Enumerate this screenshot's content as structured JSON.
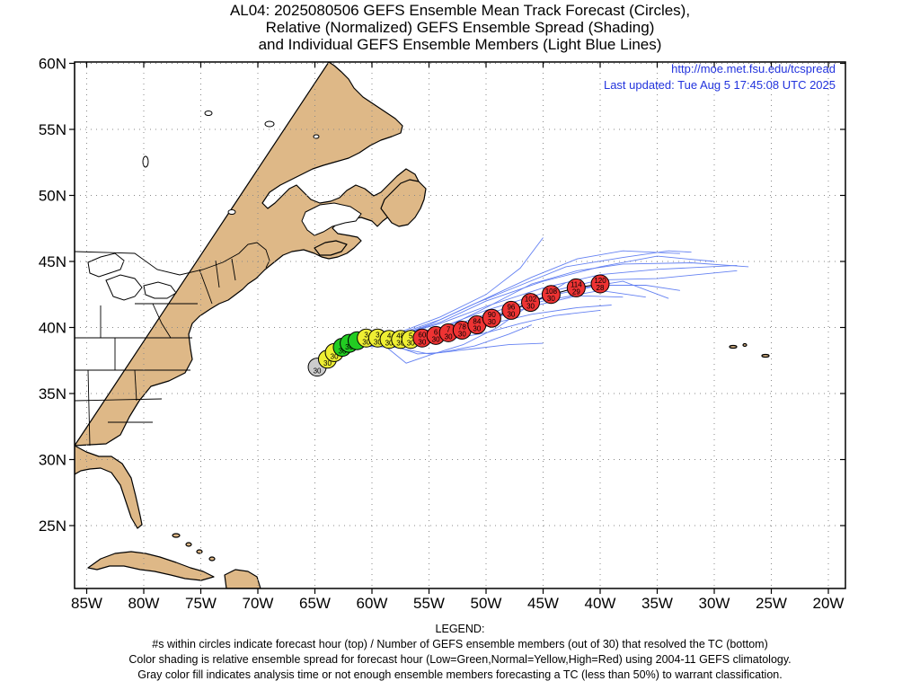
{
  "title": {
    "line1": "AL04: 2025080506 GEFS Ensemble Mean Track Forecast (Circles),",
    "line2": "Relative (Normalized) GEFS Ensemble Spread (Shading)",
    "line3": "and Individual GEFS Ensemble Members (Light Blue Lines)"
  },
  "info": {
    "url": "http://moe.met.fsu.edu/tcspread",
    "updated": "Last updated: Tue Aug 5 17:45:08 UTC 2025"
  },
  "axes": {
    "lon_labels": [
      "85W",
      "80W",
      "75W",
      "70W",
      "65W",
      "60W",
      "55W",
      "50W",
      "45W",
      "40W",
      "35W",
      "30W",
      "25W",
      "20W"
    ],
    "lat_labels": [
      "60N",
      "55N",
      "50N",
      "45N",
      "40N",
      "35N",
      "30N",
      "25N"
    ]
  },
  "legend": {
    "heading": "LEGEND:",
    "line1": "#s within circles indicate forecast hour (top) / Number of GEFS ensemble members (out of 30) that resolved the TC (bottom)",
    "line2": "Color shading is relative ensemble spread for forecast hour (Low=Green,Normal=Yellow,High=Red) using 2004-11 GEFS climatology.",
    "line3": "Gray color fill indicates analysis time or not enough ensemble members forecasting a TC (less than 50%) to warrant classification."
  },
  "colors": {
    "land": "#deb887",
    "member_lines": "#4a6cf0",
    "gray": "#cccccc",
    "green": "#22cc22",
    "yellow": "#eeee33",
    "red": "#ee3333",
    "info_text": "#2233dd"
  },
  "chart_data": {
    "type": "scatter",
    "x_unit": "degrees longitude (negative = W)",
    "y_unit": "degrees latitude",
    "xlim": [
      -86,
      -18
    ],
    "ylim": [
      20.5,
      60
    ],
    "grid": true,
    "track": [
      {
        "lon": -64.8,
        "lat": 37.0,
        "hour": "",
        "members": "30",
        "shade": "gray"
      },
      {
        "lon": -63.9,
        "lat": 37.6,
        "hour": "",
        "members": "30",
        "shade": "yellow"
      },
      {
        "lon": -63.3,
        "lat": 38.1,
        "hour": "",
        "members": "30",
        "shade": "yellow"
      },
      {
        "lon": -62.6,
        "lat": 38.5,
        "hour": "",
        "members": "30",
        "shade": "green"
      },
      {
        "lon": -62.0,
        "lat": 38.8,
        "hour": "",
        "members": "30",
        "shade": "green"
      },
      {
        "lon": -61.3,
        "lat": 39.0,
        "hour": "",
        "members": "",
        "shade": "green"
      },
      {
        "lon": -60.5,
        "lat": 39.2,
        "hour": "3",
        "members": "30",
        "shade": "yellow"
      },
      {
        "lon": -59.5,
        "lat": 39.2,
        "hour": "3",
        "members": "30",
        "shade": "yellow"
      },
      {
        "lon": -58.5,
        "lat": 39.1,
        "hour": "4",
        "members": "30",
        "shade": "yellow"
      },
      {
        "lon": -57.5,
        "lat": 39.1,
        "hour": "48",
        "members": "30",
        "shade": "yellow"
      },
      {
        "lon": -56.6,
        "lat": 39.1,
        "hour": "5",
        "members": "30",
        "shade": "yellow"
      },
      {
        "lon": -55.6,
        "lat": 39.2,
        "hour": "60",
        "members": "30",
        "shade": "red"
      },
      {
        "lon": -54.4,
        "lat": 39.4,
        "hour": "6",
        "members": "30",
        "shade": "red"
      },
      {
        "lon": -53.3,
        "lat": 39.6,
        "hour": "7",
        "members": "30",
        "shade": "red"
      },
      {
        "lon": -52.1,
        "lat": 39.8,
        "hour": "78",
        "members": "30",
        "shade": "red"
      },
      {
        "lon": -50.8,
        "lat": 40.2,
        "hour": "84",
        "members": "30",
        "shade": "red"
      },
      {
        "lon": -49.5,
        "lat": 40.7,
        "hour": "90",
        "members": "30",
        "shade": "red"
      },
      {
        "lon": -47.8,
        "lat": 41.3,
        "hour": "96",
        "members": "30",
        "shade": "red"
      },
      {
        "lon": -46.1,
        "lat": 41.9,
        "hour": "102",
        "members": "30",
        "shade": "red"
      },
      {
        "lon": -44.3,
        "lat": 42.5,
        "hour": "108",
        "members": "30",
        "shade": "red"
      },
      {
        "lon": -42.1,
        "lat": 43.0,
        "hour": "114",
        "members": "29",
        "shade": "red"
      },
      {
        "lon": -40.0,
        "lat": 43.3,
        "hour": "120",
        "members": "28",
        "shade": "red"
      }
    ],
    "members": [
      [
        [
          -62,
          38.6
        ],
        [
          -58,
          39.5
        ],
        [
          -54,
          40.8
        ],
        [
          -50,
          42.5
        ],
        [
          -47,
          44.5
        ],
        [
          -45,
          46.8
        ]
      ],
      [
        [
          -62,
          38.6
        ],
        [
          -58,
          39.4
        ],
        [
          -54,
          40.6
        ],
        [
          -50,
          42.2
        ],
        [
          -46,
          43.8
        ],
        [
          -42,
          45.2
        ],
        [
          -38,
          45.8
        ],
        [
          -33,
          45.6
        ]
      ],
      [
        [
          -62,
          38.6
        ],
        [
          -58,
          39.3
        ],
        [
          -54,
          40.4
        ],
        [
          -50,
          42.0
        ],
        [
          -45,
          43.5
        ],
        [
          -40,
          44.6
        ],
        [
          -35,
          45.4
        ],
        [
          -30,
          45.0
        ]
      ],
      [
        [
          -62,
          38.6
        ],
        [
          -58,
          39.3
        ],
        [
          -54,
          40.3
        ],
        [
          -50,
          41.6
        ],
        [
          -45,
          43.0
        ],
        [
          -40,
          44.0
        ],
        [
          -35,
          44.4
        ],
        [
          -28,
          44.7
        ]
      ],
      [
        [
          -62,
          38.6
        ],
        [
          -58,
          39.2
        ],
        [
          -54,
          40.0
        ],
        [
          -50,
          41.3
        ],
        [
          -45,
          42.6
        ],
        [
          -40,
          43.6
        ],
        [
          -35,
          43.7
        ],
        [
          -28,
          44.3
        ]
      ],
      [
        [
          -62,
          38.6
        ],
        [
          -58,
          39.1
        ],
        [
          -54,
          39.8
        ],
        [
          -50,
          41.0
        ],
        [
          -45,
          42.3
        ],
        [
          -40,
          43.2
        ],
        [
          -36,
          43.2
        ],
        [
          -33,
          42.8
        ]
      ],
      [
        [
          -62,
          38.6
        ],
        [
          -58,
          39.0
        ],
        [
          -54,
          39.6
        ],
        [
          -50,
          40.8
        ],
        [
          -45,
          42.0
        ],
        [
          -40,
          42.8
        ],
        [
          -36,
          42.3
        ]
      ],
      [
        [
          -62,
          38.6
        ],
        [
          -58,
          39.0
        ],
        [
          -54,
          39.4
        ],
        [
          -50,
          40.5
        ],
        [
          -46,
          41.6
        ],
        [
          -42,
          42.4
        ],
        [
          -38,
          42.3
        ]
      ],
      [
        [
          -62,
          38.6
        ],
        [
          -58,
          38.9
        ],
        [
          -54,
          39.2
        ],
        [
          -50,
          40.2
        ],
        [
          -46,
          41.0
        ],
        [
          -42,
          41.5
        ],
        [
          -39,
          41.7
        ]
      ],
      [
        [
          -62,
          38.6
        ],
        [
          -58,
          38.8
        ],
        [
          -54,
          39.0
        ],
        [
          -50,
          39.6
        ],
        [
          -47,
          40.3
        ],
        [
          -44,
          40.9
        ],
        [
          -40,
          41.3
        ]
      ],
      [
        [
          -62,
          38.6
        ],
        [
          -58,
          38.6
        ],
        [
          -56,
          38.0
        ],
        [
          -54,
          38.1
        ],
        [
          -51,
          38.6
        ],
        [
          -48,
          39.5
        ],
        [
          -46,
          40.2
        ]
      ],
      [
        [
          -62,
          38.6
        ],
        [
          -58,
          38.5
        ],
        [
          -55,
          38.0
        ],
        [
          -51,
          38.4
        ],
        [
          -48,
          38.7
        ],
        [
          -45,
          38.8
        ]
      ],
      [
        [
          -62,
          38.6
        ],
        [
          -59,
          38.7
        ],
        [
          -57,
          37.3
        ],
        [
          -55,
          37.9
        ],
        [
          -52,
          38.7
        ],
        [
          -49,
          40.0
        ],
        [
          -46,
          41.8
        ],
        [
          -43,
          43.4
        ]
      ],
      [
        [
          -62,
          38.6
        ],
        [
          -58,
          39.3
        ],
        [
          -55,
          40.2
        ],
        [
          -51,
          41.8
        ],
        [
          -47,
          43.2
        ],
        [
          -43,
          44.6
        ],
        [
          -38,
          45.3
        ],
        [
          -34,
          45.8
        ],
        [
          -32,
          45.7
        ]
      ],
      [
        [
          -62,
          38.6
        ],
        [
          -58,
          39.1
        ],
        [
          -54,
          39.5
        ],
        [
          -50,
          40.4
        ],
        [
          -47,
          41.6
        ],
        [
          -43,
          42.8
        ],
        [
          -38,
          43.5
        ],
        [
          -34,
          42.2
        ]
      ],
      [
        [
          -62,
          38.6
        ],
        [
          -58,
          39.0
        ],
        [
          -54,
          39.8
        ],
        [
          -50,
          41.5
        ],
        [
          -46,
          43.3
        ],
        [
          -42,
          44.3
        ],
        [
          -38,
          44.8
        ],
        [
          -32,
          44.9
        ],
        [
          -27,
          44.6
        ]
      ]
    ]
  }
}
